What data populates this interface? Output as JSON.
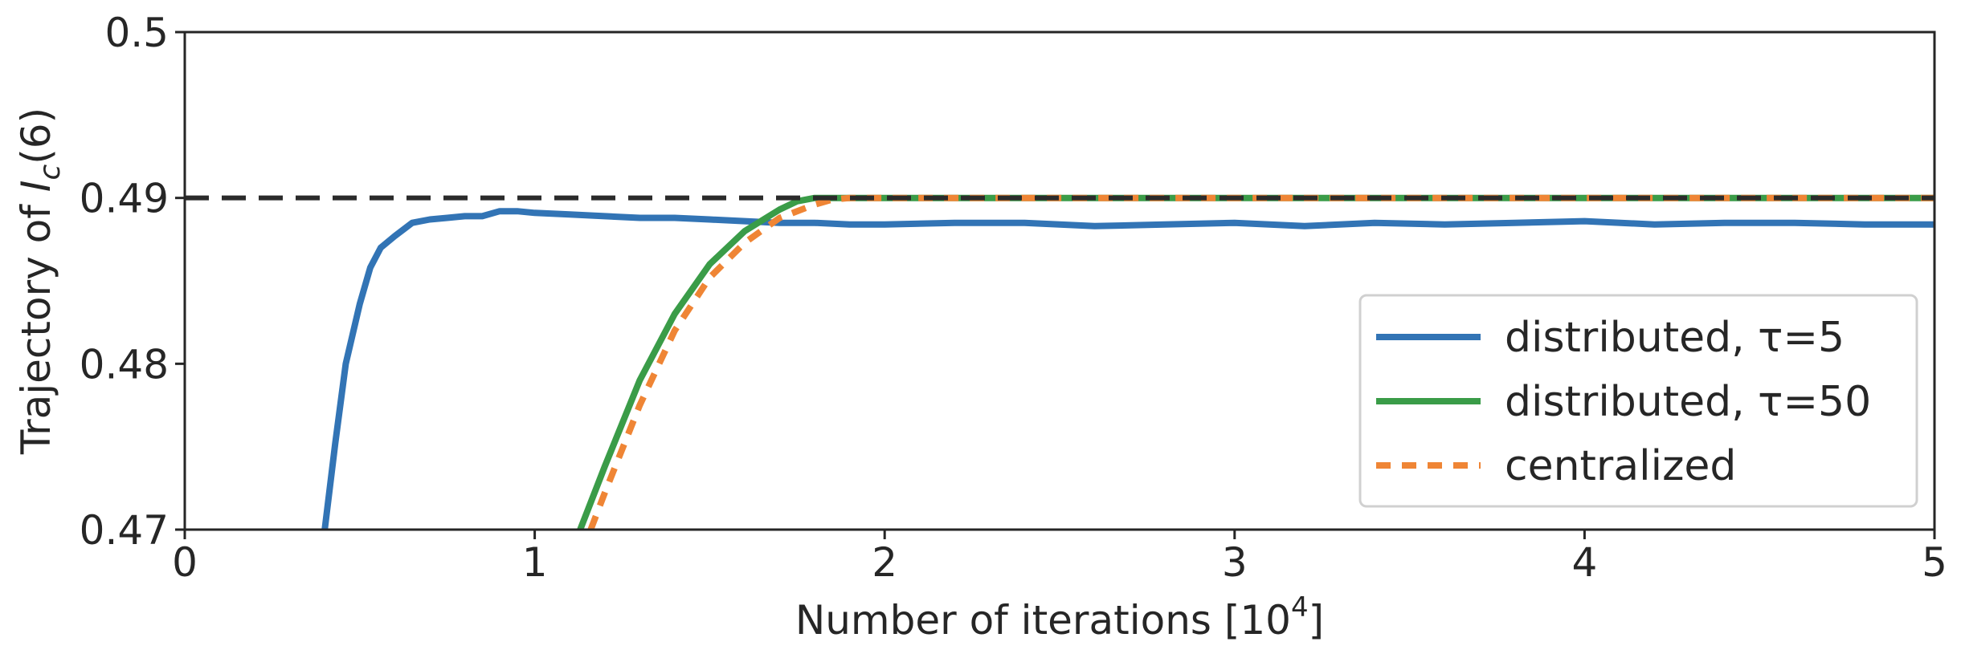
{
  "chart_data": {
    "type": "line",
    "xlabel": "Number of iterations [10",
    "xlabel_sup": "4",
    "xlabel_end": "]",
    "ylabel": "Trajectory of ",
    "ylabel_var": "I",
    "ylabel_sub": "c",
    "ylabel_end": "(6)",
    "xlim": [
      0,
      5
    ],
    "ylim": [
      0.47,
      0.5
    ],
    "xticks": [
      0,
      1,
      2,
      3,
      4,
      5
    ],
    "xtick_labels": [
      "0",
      "1",
      "2",
      "3",
      "4",
      "5"
    ],
    "yticks": [
      0.47,
      0.48,
      0.49,
      0.5
    ],
    "ytick_labels": [
      "0.47",
      "0.48",
      "0.49",
      "0.5"
    ],
    "grid": false,
    "legend_position": "lower-right",
    "reference_line": {
      "y": 0.49,
      "style": "dashed",
      "color": "#2b2b2b"
    },
    "series": [
      {
        "name": "distributed, τ=5",
        "color": "#3274b5",
        "x": [
          0.4,
          0.43,
          0.46,
          0.5,
          0.53,
          0.56,
          0.6,
          0.65,
          0.7,
          0.75,
          0.8,
          0.85,
          0.9,
          0.95,
          1.0,
          1.1,
          1.2,
          1.3,
          1.4,
          1.5,
          1.6,
          1.7,
          1.8,
          1.9,
          2.0,
          2.2,
          2.4,
          2.6,
          2.8,
          3.0,
          3.2,
          3.4,
          3.6,
          3.8,
          4.0,
          4.2,
          4.4,
          4.6,
          4.8,
          5.0
        ],
        "y": [
          0.47,
          0.4752,
          0.48,
          0.4836,
          0.4858,
          0.487,
          0.4877,
          0.4885,
          0.4887,
          0.4888,
          0.4889,
          0.4889,
          0.4892,
          0.4892,
          0.4891,
          0.489,
          0.4889,
          0.4888,
          0.4888,
          0.4887,
          0.4886,
          0.4885,
          0.4885,
          0.4884,
          0.4884,
          0.4885,
          0.4885,
          0.4883,
          0.4884,
          0.4885,
          0.4883,
          0.4885,
          0.4884,
          0.4885,
          0.4886,
          0.4884,
          0.4885,
          0.4885,
          0.4884,
          0.4884
        ]
      },
      {
        "name": "distributed, τ=50",
        "color": "#3a9c48",
        "x": [
          1.13,
          1.2,
          1.3,
          1.4,
          1.5,
          1.6,
          1.7,
          1.75,
          1.8,
          2.0,
          3.0,
          4.0,
          5.0
        ],
        "y": [
          0.47,
          0.4738,
          0.479,
          0.483,
          0.486,
          0.488,
          0.4893,
          0.4898,
          0.49,
          0.49,
          0.49,
          0.49,
          0.49
        ]
      },
      {
        "name": "centralized",
        "color": "#ef8535",
        "dashed": true,
        "x": [
          1.16,
          1.2,
          1.3,
          1.4,
          1.5,
          1.6,
          1.7,
          1.8,
          1.85,
          1.9,
          2.0,
          3.0,
          4.0,
          5.0
        ],
        "y": [
          0.47,
          0.4722,
          0.4775,
          0.482,
          0.4852,
          0.4873,
          0.4888,
          0.4896,
          0.4899,
          0.49,
          0.49,
          0.49,
          0.49,
          0.49
        ]
      }
    ]
  }
}
